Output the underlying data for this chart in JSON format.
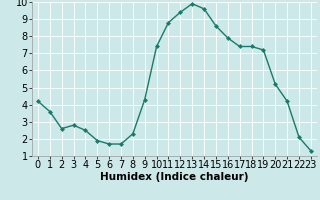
{
  "x": [
    0,
    1,
    2,
    3,
    4,
    5,
    6,
    7,
    8,
    9,
    10,
    11,
    12,
    13,
    14,
    15,
    16,
    17,
    18,
    19,
    20,
    21,
    22,
    23
  ],
  "y": [
    4.2,
    3.6,
    2.6,
    2.8,
    2.5,
    1.9,
    1.7,
    1.7,
    2.3,
    4.3,
    7.4,
    8.8,
    9.4,
    9.9,
    9.6,
    8.6,
    7.9,
    7.4,
    7.4,
    7.2,
    5.2,
    4.2,
    2.1,
    1.3
  ],
  "line_color": "#1a7a6a",
  "marker": "D",
  "marker_size": 2.0,
  "bg_color": "#cce8e8",
  "grid_color": "#ffffff",
  "xlabel": "Humidex (Indice chaleur)",
  "xlabel_fontsize": 7.5,
  "tick_fontsize": 7,
  "xlim": [
    -0.5,
    23.5
  ],
  "ylim": [
    1,
    10
  ],
  "yticks": [
    1,
    2,
    3,
    4,
    5,
    6,
    7,
    8,
    9,
    10
  ],
  "xticks": [
    0,
    1,
    2,
    3,
    4,
    5,
    6,
    7,
    8,
    9,
    10,
    11,
    12,
    13,
    14,
    15,
    16,
    17,
    18,
    19,
    20,
    21,
    22,
    23
  ]
}
